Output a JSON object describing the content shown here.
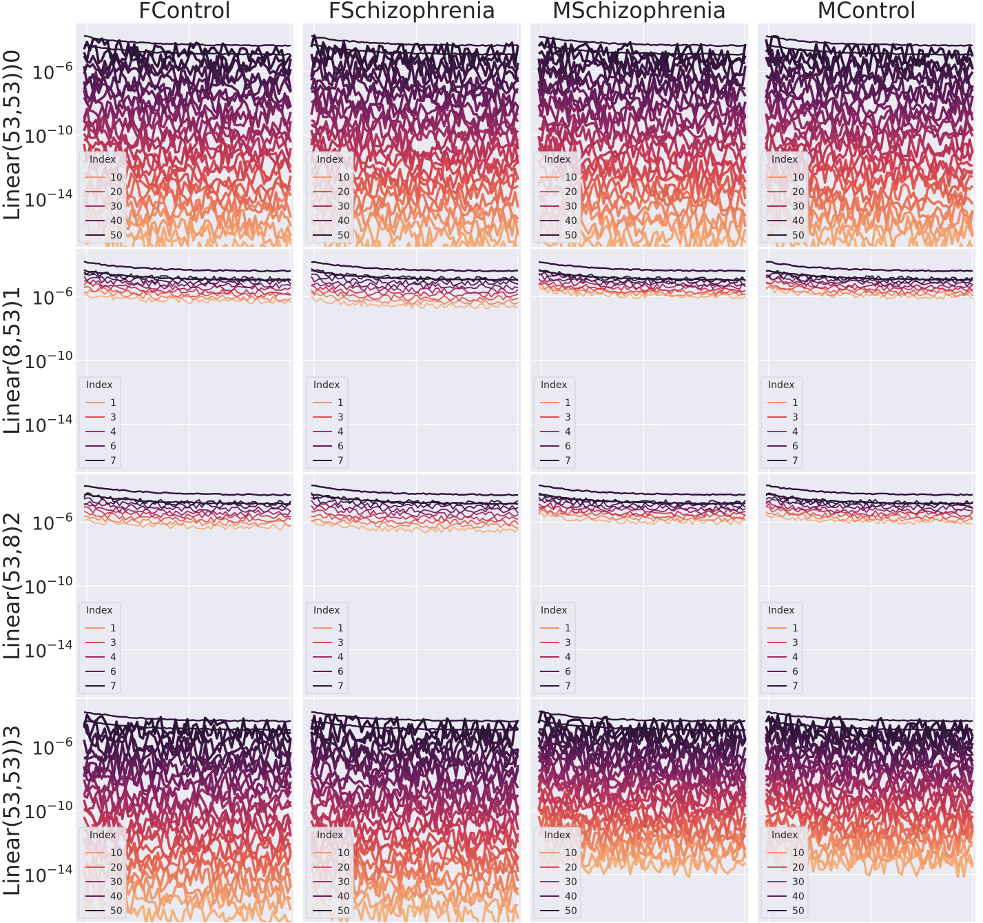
{
  "figure": {
    "columns": [
      "FControl",
      "FSchizophrenia",
      "MSchizophrenia",
      "MControl"
    ],
    "rows": [
      "Linear(53,53))0",
      "Linear(8,53)1",
      "Linear(53,8)2",
      "Linear(53,53))3"
    ],
    "yticks": [
      {
        "exp": -6,
        "base": "10",
        "sup": "−6"
      },
      {
        "exp": -10,
        "base": "10",
        "sup": "−10"
      },
      {
        "exp": -14,
        "base": "10",
        "sup": "−14"
      }
    ],
    "legend_title": "Index",
    "legend_sets": {
      "big": [
        "10",
        "20",
        "30",
        "40",
        "50"
      ],
      "small": [
        "1",
        "3",
        "4",
        "6",
        "7"
      ]
    },
    "row_legend": [
      "big",
      "small",
      "small",
      "big"
    ],
    "colors": {
      "background": "#eaeaf2",
      "grid": "#ffffff",
      "palette": [
        "#f3b27c",
        "#ee8a62",
        "#e05b50",
        "#c73a55",
        "#9e2d61",
        "#72205f",
        "#4a1a4d",
        "#2d1538"
      ]
    }
  },
  "chart_data": {
    "type": "line",
    "title": "",
    "xlabel": "",
    "yscale": "log",
    "ylim": [
      1e-17,
      0.001
    ],
    "columns": [
      "FControl",
      "FSchizophrenia",
      "MSchizophrenia",
      "MControl"
    ],
    "rows": [
      {
        "ylabel": "Linear(53,53))0",
        "legend_title": "Index",
        "legend": [
          "10",
          "20",
          "30",
          "40",
          "50"
        ],
        "n_series": 53,
        "approx_log10_upper_envelope": -4.3,
        "approx_log10_lower_envelope": {
          "FControl": -17,
          "FSchizophrenia": -17,
          "MSchizophrenia": -17,
          "MControl": -17
        }
      },
      {
        "ylabel": "Linear(8,53)1",
        "legend_title": "Index",
        "legend": [
          "1",
          "3",
          "4",
          "6",
          "7"
        ],
        "n_series": 8,
        "approx_log10_upper_envelope": -4.3,
        "approx_log10_lower_envelope": {
          "FControl": -6.3,
          "FSchizophrenia": -6.6,
          "MSchizophrenia": -6.0,
          "MControl": -6.0
        }
      },
      {
        "ylabel": "Linear(53,8)2",
        "legend_title": "Index",
        "legend": [
          "1",
          "3",
          "4",
          "6",
          "7"
        ],
        "n_series": 8,
        "approx_log10_upper_envelope": -4.2,
        "approx_log10_lower_envelope": {
          "FControl": -6.3,
          "FSchizophrenia": -6.5,
          "MSchizophrenia": -6.0,
          "MControl": -6.0
        }
      },
      {
        "ylabel": "Linear(53,53))3",
        "legend_title": "Index",
        "legend": [
          "10",
          "20",
          "30",
          "40",
          "50"
        ],
        "n_series": 53,
        "approx_log10_upper_envelope": -4.3,
        "approx_log10_lower_envelope": {
          "FControl": -16.5,
          "FSchizophrenia": -16.5,
          "MSchizophrenia": -13.5,
          "MControl": -13.5
        }
      }
    ]
  }
}
